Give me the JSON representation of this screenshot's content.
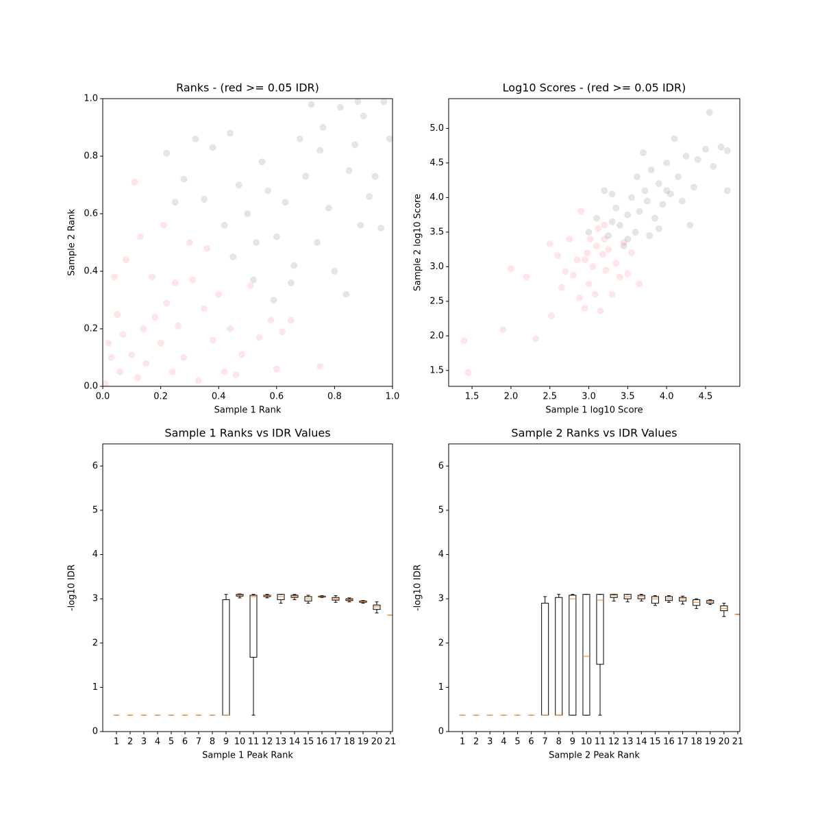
{
  "chart_data": [
    {
      "type": "scatter",
      "title": "Ranks - (red >= 0.05 IDR)",
      "xlabel": "Sample 1 Rank",
      "ylabel": "Sample 2 Rank",
      "xlim": [
        0,
        1
      ],
      "ylim": [
        0,
        1
      ],
      "xticks": [
        {
          "value": 0,
          "label": "0.0"
        },
        {
          "value": 0.2,
          "label": "0.2"
        },
        {
          "value": 0.4,
          "label": "0.4"
        },
        {
          "value": 0.6,
          "label": "0.6"
        },
        {
          "value": 0.8,
          "label": "0.8"
        },
        {
          "value": 1,
          "label": "1.0"
        }
      ],
      "yticks": [
        {
          "value": 0,
          "label": "0.0"
        },
        {
          "value": 0.2,
          "label": "0.2"
        },
        {
          "value": 0.4,
          "label": "0.4"
        },
        {
          "value": 0.6,
          "label": "0.6"
        },
        {
          "value": 0.8,
          "label": "0.8"
        },
        {
          "value": 1,
          "label": "1.0"
        }
      ],
      "alpha": 0.1,
      "series": [
        {
          "color": "#ff0000",
          "x": [
            0.01,
            0.02,
            0.03,
            0.04,
            0.05,
            0.06,
            0.07,
            0.08,
            0.1,
            0.11,
            0.12,
            0.13,
            0.14,
            0.15,
            0.17,
            0.18,
            0.2,
            0.21,
            0.22,
            0.24,
            0.25,
            0.26,
            0.28,
            0.3,
            0.31,
            0.33,
            0.35,
            0.36,
            0.38,
            0.4,
            0.42,
            0.44,
            0.46,
            0.48,
            0.51,
            0.54,
            0.58,
            0.6,
            0.62,
            0.65,
            0.75
          ],
          "y": [
            0.01,
            0.15,
            0.1,
            0.38,
            0.25,
            0.05,
            0.18,
            0.44,
            0.11,
            0.71,
            0.03,
            0.52,
            0.2,
            0.08,
            0.38,
            0.24,
            0.15,
            0.56,
            0.29,
            0.05,
            0.36,
            0.21,
            0.1,
            0.5,
            0.37,
            0.02,
            0.27,
            0.48,
            0.16,
            0.32,
            0.05,
            0.2,
            0.04,
            0.11,
            0.35,
            0.17,
            0.23,
            0.06,
            0.19,
            0.23,
            0.07
          ]
        },
        {
          "color": "#000000",
          "x": [
            0.22,
            0.25,
            0.28,
            0.32,
            0.35,
            0.38,
            0.42,
            0.44,
            0.47,
            0.5,
            0.52,
            0.55,
            0.57,
            0.59,
            0.6,
            0.63,
            0.66,
            0.68,
            0.7,
            0.72,
            0.74,
            0.76,
            0.78,
            0.8,
            0.82,
            0.84,
            0.85,
            0.87,
            0.89,
            0.9,
            0.92,
            0.94,
            0.96,
            0.97,
            0.99,
            0.45,
            0.53,
            0.65,
            0.75,
            0.88
          ],
          "y": [
            0.81,
            0.64,
            0.72,
            0.86,
            0.65,
            0.83,
            0.56,
            0.88,
            0.7,
            0.6,
            0.37,
            0.78,
            0.68,
            0.3,
            0.52,
            0.64,
            0.42,
            0.86,
            0.73,
            0.98,
            0.5,
            0.9,
            0.62,
            0.4,
            0.97,
            0.32,
            0.75,
            0.84,
            0.56,
            0.94,
            0.66,
            0.73,
            0.55,
            0.99,
            0.86,
            0.45,
            0.5,
            0.36,
            0.82,
            0.99
          ]
        }
      ]
    },
    {
      "type": "scatter",
      "title": "Log10 Scores - (red >= 0.05 IDR)",
      "xlabel": "Sample 1 log10 Score",
      "ylabel": "Sample 2 log10 Score",
      "xlim": [
        1.2,
        4.94
      ],
      "ylim": [
        1.27,
        5.43
      ],
      "xticks": [
        1.5,
        {
          "value": 2,
          "label": "2.0"
        },
        2.5,
        {
          "value": 3,
          "label": "3.0"
        },
        3.5,
        {
          "value": 4,
          "label": "4.0"
        },
        4.5
      ],
      "yticks": [
        1.5,
        {
          "value": 2,
          "label": "2.0"
        },
        2.5,
        {
          "value": 3,
          "label": "3.0"
        },
        3.5,
        {
          "value": 4,
          "label": "4.0"
        },
        4.5,
        {
          "value": 5,
          "label": "5.0"
        }
      ],
      "alpha": 0.1,
      "series": [
        {
          "color": "#ff0000",
          "x": [
            1.4,
            1.45,
            1.9,
            2.0,
            2.2,
            2.32,
            2.5,
            2.52,
            2.6,
            2.65,
            2.7,
            2.75,
            2.8,
            2.85,
            2.88,
            2.9,
            2.95,
            2.98,
            3.0,
            3.02,
            3.05,
            3.08,
            3.1,
            3.12,
            3.15,
            3.18,
            3.2,
            3.22,
            3.25,
            3.3,
            3.35,
            3.4,
            3.45,
            3.5,
            3.55,
            3.65,
            3.2,
            2.95
          ],
          "y": [
            1.93,
            1.47,
            2.09,
            2.97,
            2.85,
            1.96,
            3.33,
            2.29,
            3.16,
            2.7,
            2.93,
            3.4,
            2.88,
            3.1,
            2.55,
            3.8,
            2.4,
            3.2,
            2.75,
            3.4,
            3.0,
            2.6,
            3.3,
            3.55,
            2.36,
            3.18,
            3.6,
            2.95,
            3.25,
            2.6,
            3.05,
            2.85,
            3.35,
            2.9,
            3.2,
            2.75,
            3.4,
            3.1
          ]
        },
        {
          "color": "#000000",
          "x": [
            3.0,
            3.1,
            3.2,
            3.25,
            3.3,
            3.35,
            3.4,
            3.45,
            3.5,
            3.55,
            3.6,
            3.62,
            3.65,
            3.7,
            3.72,
            3.75,
            3.78,
            3.8,
            3.85,
            3.9,
            3.95,
            4.0,
            4.05,
            4.1,
            4.15,
            4.2,
            4.25,
            4.3,
            4.35,
            4.4,
            4.5,
            4.55,
            4.6,
            4.7,
            4.78,
            4.78,
            3.5,
            3.3,
            3.9,
            4.0
          ],
          "y": [
            3.5,
            3.7,
            4.1,
            3.45,
            3.65,
            3.85,
            3.6,
            3.3,
            3.75,
            4.0,
            3.5,
            4.3,
            3.8,
            4.65,
            4.1,
            3.95,
            3.45,
            4.4,
            3.7,
            4.2,
            3.9,
            4.5,
            4.05,
            4.85,
            4.3,
            3.95,
            4.6,
            3.6,
            4.15,
            4.55,
            4.7,
            5.23,
            4.45,
            4.73,
            4.1,
            4.68,
            3.4,
            4.05,
            3.55,
            4.1
          ]
        }
      ]
    },
    {
      "type": "box",
      "title": "Sample 1 Ranks vs IDR Values",
      "xlabel": "Sample 1 Peak Rank",
      "ylabel": "-log10 IDR",
      "ylim": [
        0,
        6.5
      ],
      "yticks": [
        0,
        1,
        2,
        3,
        4,
        5,
        6
      ],
      "box_color": "#000000",
      "median_color": "#ff7f0e",
      "categories": [
        "1",
        "2",
        "3",
        "4",
        "5",
        "6",
        "7",
        "8",
        "9",
        "10",
        "11",
        "12",
        "13",
        "14",
        "15",
        "16",
        "17",
        "18",
        "19",
        "20",
        "21"
      ],
      "min": [
        0.37,
        0.37,
        0.37,
        0.37,
        0.37,
        0.37,
        0.37,
        0.37,
        0.37,
        3.02,
        0.37,
        3.02,
        2.9,
        2.98,
        2.9,
        3.03,
        2.92,
        2.93,
        2.9,
        2.68,
        2.63
      ],
      "q1": [
        0.37,
        0.37,
        0.37,
        0.37,
        0.37,
        0.37,
        0.37,
        0.37,
        0.37,
        3.06,
        1.68,
        3.05,
        2.98,
        3.03,
        2.95,
        3.04,
        2.97,
        2.96,
        2.92,
        2.76,
        2.63
      ],
      "median": [
        0.37,
        0.37,
        0.37,
        0.37,
        0.37,
        0.37,
        0.37,
        0.37,
        0.37,
        3.08,
        3.05,
        3.07,
        3.05,
        3.06,
        3.0,
        3.05,
        3.0,
        2.98,
        2.93,
        2.82,
        2.63
      ],
      "q3": [
        0.37,
        0.37,
        0.37,
        0.37,
        0.37,
        0.37,
        0.37,
        0.37,
        2.98,
        3.1,
        3.08,
        3.08,
        3.1,
        3.08,
        3.05,
        3.06,
        3.03,
        3.0,
        2.95,
        2.86,
        2.63
      ],
      "max": [
        0.37,
        0.37,
        0.37,
        0.37,
        0.37,
        0.37,
        0.37,
        0.37,
        3.1,
        3.11,
        3.1,
        3.1,
        3.1,
        3.1,
        3.08,
        3.07,
        3.07,
        3.02,
        2.96,
        2.93,
        2.63
      ]
    },
    {
      "type": "box",
      "title": "Sample 2 Ranks vs IDR Values",
      "xlabel": "Sample 2 Peak Rank",
      "ylabel": "-log10 IDR",
      "ylim": [
        0,
        6.5
      ],
      "yticks": [
        0,
        1,
        2,
        3,
        4,
        5,
        6
      ],
      "box_color": "#000000",
      "median_color": "#ff7f0e",
      "categories": [
        "1",
        "2",
        "3",
        "4",
        "5",
        "6",
        "7",
        "8",
        "9",
        "10",
        "11",
        "12",
        "13",
        "14",
        "15",
        "16",
        "17",
        "18",
        "19",
        "20",
        "21"
      ],
      "min": [
        0.37,
        0.37,
        0.37,
        0.37,
        0.37,
        0.37,
        0.37,
        0.37,
        0.37,
        0.37,
        0.37,
        2.95,
        2.93,
        2.95,
        2.85,
        2.92,
        2.88,
        2.78,
        2.87,
        2.6,
        2.65
      ],
      "q1": [
        0.37,
        0.37,
        0.37,
        0.37,
        0.37,
        0.37,
        0.37,
        0.37,
        0.37,
        0.37,
        1.52,
        3.03,
        3.0,
        3.0,
        2.9,
        2.96,
        2.95,
        2.85,
        2.9,
        2.73,
        2.65
      ],
      "median": [
        0.37,
        0.37,
        0.37,
        0.37,
        0.37,
        0.37,
        0.37,
        0.37,
        3.0,
        1.7,
        2.97,
        3.08,
        3.05,
        3.05,
        3.0,
        3.0,
        3.0,
        2.92,
        2.93,
        2.78,
        2.65
      ],
      "q3": [
        0.37,
        0.37,
        0.37,
        0.37,
        0.37,
        0.37,
        2.9,
        3.03,
        3.08,
        3.1,
        3.1,
        3.1,
        3.1,
        3.08,
        3.05,
        3.05,
        3.03,
        2.98,
        2.96,
        2.84,
        2.65
      ],
      "max": [
        0.37,
        0.37,
        0.37,
        0.37,
        0.37,
        0.37,
        3.05,
        3.1,
        3.1,
        3.1,
        3.1,
        3.1,
        3.1,
        3.1,
        3.07,
        3.07,
        3.06,
        3.0,
        2.98,
        2.9,
        2.65
      ]
    }
  ]
}
